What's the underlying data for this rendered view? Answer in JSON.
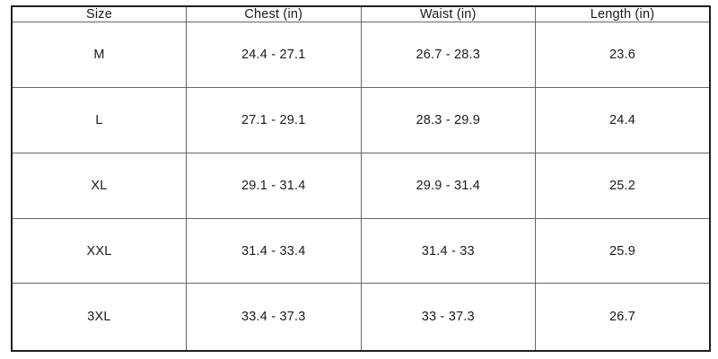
{
  "colors": {
    "background": "#ffffff",
    "outer_border": "#1f1f1f",
    "inner_border": "#666666",
    "text": "#1a1a1a"
  },
  "chart_data": {
    "type": "table",
    "columns": [
      "Size",
      "Chest (in)",
      "Waist (in)",
      "Length (in)"
    ],
    "rows": [
      [
        "M",
        "24.4 - 27.1",
        "26.7 - 28.3",
        "23.6"
      ],
      [
        "L",
        "27.1 - 29.1",
        "28.3 - 29.9",
        "24.4"
      ],
      [
        "XL",
        "29.1 - 31.4",
        "29.9 - 31.4",
        "25.2"
      ],
      [
        "XXL",
        "31.4 - 33.4",
        "31.4 - 33",
        "25.9"
      ],
      [
        "3XL",
        "33.4 - 37.3",
        "33 - 37.3",
        "26.7"
      ]
    ]
  }
}
